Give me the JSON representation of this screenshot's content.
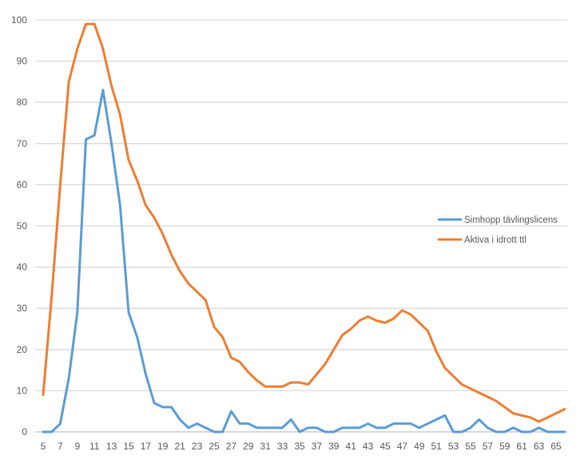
{
  "chart_data": {
    "type": "line",
    "title": "",
    "xlabel": "",
    "ylabel": "",
    "ylim": [
      0,
      100
    ],
    "yticks": [
      0,
      10,
      20,
      30,
      40,
      50,
      60,
      70,
      80,
      90,
      100
    ],
    "xticks": [
      5,
      7,
      9,
      11,
      13,
      15,
      17,
      19,
      21,
      23,
      25,
      27,
      29,
      31,
      33,
      35,
      37,
      39,
      41,
      43,
      45,
      47,
      49,
      51,
      53,
      55,
      57,
      59,
      61,
      63,
      65
    ],
    "x": [
      5,
      6,
      7,
      8,
      9,
      10,
      11,
      12,
      13,
      14,
      15,
      16,
      17,
      18,
      19,
      20,
      21,
      22,
      23,
      24,
      25,
      26,
      27,
      28,
      29,
      30,
      31,
      32,
      33,
      34,
      35,
      36,
      37,
      38,
      39,
      40,
      41,
      42,
      43,
      44,
      45,
      46,
      47,
      48,
      49,
      50,
      51,
      52,
      53,
      54,
      55,
      56,
      57,
      58,
      59,
      60,
      61,
      62,
      63,
      64,
      65,
      66
    ],
    "grid": true,
    "legend_position": "right",
    "series": [
      {
        "name": "Simhopp tävlingslicens",
        "color": "#5b9bd5",
        "values": [
          0,
          0,
          2,
          13,
          29,
          71,
          72,
          83,
          70,
          55,
          29,
          23,
          14,
          7,
          6,
          6,
          3,
          1,
          2,
          1,
          0,
          0,
          5,
          2,
          2,
          1,
          1,
          1,
          1,
          3,
          0,
          1,
          1,
          0,
          0,
          1,
          1,
          1,
          2,
          1,
          1,
          2,
          2,
          2,
          1,
          2,
          3,
          4,
          0,
          0,
          1,
          3,
          1,
          0,
          0,
          1,
          0,
          0,
          1,
          0,
          0,
          0
        ]
      },
      {
        "name": "Aktiva i idrott ttl",
        "color": "#ed7d31",
        "values": [
          9,
          33,
          60,
          85,
          93,
          99,
          99,
          93,
          84,
          77,
          66,
          61,
          55,
          52,
          48,
          43,
          39,
          36,
          34,
          32,
          25.5,
          23,
          18,
          17,
          14.5,
          12.5,
          11,
          11,
          11,
          12,
          12,
          11.5,
          14,
          16.5,
          20,
          23.5,
          25,
          27,
          28,
          27,
          26.5,
          27.5,
          29.5,
          28.5,
          26.5,
          24.5,
          19.5,
          15.5,
          13.5,
          11.5,
          10.5,
          9.5,
          8.5,
          7.5,
          6,
          4.5,
          4,
          3.5,
          2.5,
          3.5,
          4.5,
          5.5
        ]
      }
    ]
  }
}
